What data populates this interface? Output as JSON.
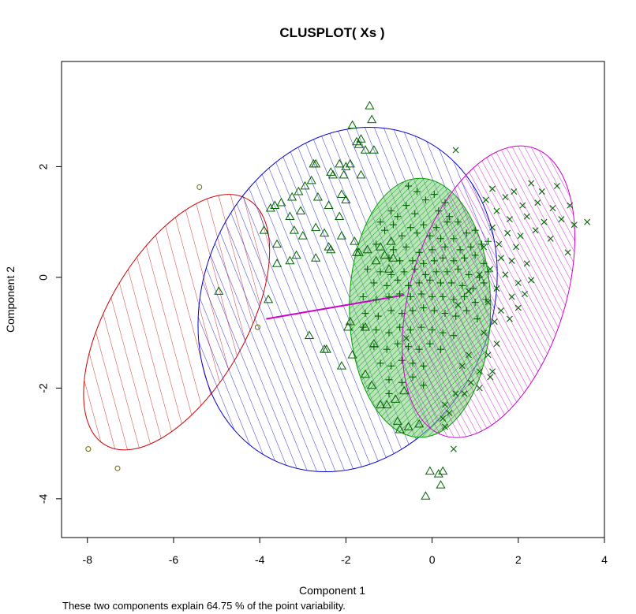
{
  "chart_data": {
    "type": "scatter",
    "title": "CLUSPLOT( Xs )",
    "xlabel": "Component 1",
    "ylabel": "Component 2",
    "subtitle": "These two components explain 64.75 % of the point variability.",
    "xlim": [
      -8.6,
      4.0
    ],
    "ylim": [
      -4.7,
      3.9
    ],
    "x_ticks": [
      -8,
      -6,
      -4,
      -2,
      0,
      2,
      4
    ],
    "y_ticks": [
      -4,
      -2,
      0,
      2
    ],
    "x_tick_labels": [
      "-8",
      "-6",
      "-4",
      "-2",
      "0",
      "2",
      "4"
    ],
    "y_tick_labels": [
      "-4",
      "-2",
      "0",
      "2"
    ],
    "grid": false,
    "colors": {
      "cluster1": "#cc0000",
      "cluster2": "#0000cc",
      "cluster3": "#00a000",
      "cluster4": "#cc00cc",
      "points": "#006400",
      "cluster1_points": "#666600",
      "link": "#cc00cc"
    },
    "ellipses": [
      {
        "cluster": 1,
        "cx": -5.93,
        "cy": -0.81,
        "rx": 3.3,
        "ry": 1.25,
        "angle_deg": 60,
        "color": "#cc0000",
        "fill": "hatch-sparse"
      },
      {
        "cluster": 2,
        "cx": -1.96,
        "cy": -0.4,
        "rx": 4.11,
        "ry": 2.6,
        "angle_deg": 67,
        "color": "#0000cc",
        "fill": "hatch"
      },
      {
        "cluster": 3,
        "cx": -0.28,
        "cy": -0.55,
        "rx": 1.64,
        "ry": 2.34,
        "angle_deg": 0,
        "color": "#00a000",
        "fill": "hatch-dense-green"
      },
      {
        "cluster": 4,
        "cx": 1.31,
        "cy": -0.26,
        "rx": 3.5,
        "ry": 1.4,
        "angle_deg": 73,
        "color": "#cc00cc",
        "fill": "hatch-dense"
      }
    ],
    "links": [
      {
        "from": [
          -3.85,
          -0.75
        ],
        "to": [
          -0.65,
          -0.32
        ],
        "color": "#cc00cc"
      }
    ],
    "series": [
      {
        "cluster": 1,
        "marker": "circle",
        "points": [
          [
            -5.4,
            1.63
          ],
          [
            -7.98,
            -3.1
          ],
          [
            -7.3,
            -3.45
          ],
          [
            -4.05,
            -0.9
          ]
        ]
      },
      {
        "cluster": 2,
        "marker": "triangle",
        "points": [
          [
            -1.45,
            3.1
          ],
          [
            -1.4,
            2.85
          ],
          [
            -1.85,
            2.75
          ],
          [
            -1.75,
            2.45
          ],
          [
            -1.65,
            2.5
          ],
          [
            -1.7,
            2.4
          ],
          [
            -1.55,
            2.3
          ],
          [
            -1.35,
            2.3
          ],
          [
            -2.7,
            2.05
          ],
          [
            -2.75,
            2.05
          ],
          [
            -2.15,
            2.05
          ],
          [
            -2.0,
            2.0
          ],
          [
            -1.9,
            2.05
          ],
          [
            -2.35,
            1.9
          ],
          [
            -2.3,
            1.85
          ],
          [
            -2.05,
            1.85
          ],
          [
            -1.65,
            1.85
          ],
          [
            -2.8,
            1.75
          ],
          [
            -2.95,
            1.65
          ],
          [
            -3.1,
            1.55
          ],
          [
            -3.25,
            1.45
          ],
          [
            -3.5,
            1.35
          ],
          [
            -2.65,
            1.45
          ],
          [
            -2.1,
            1.5
          ],
          [
            -2.0,
            1.4
          ],
          [
            -2.4,
            1.3
          ],
          [
            -3.75,
            1.25
          ],
          [
            -3.65,
            1.3
          ],
          [
            -3.3,
            1.1
          ],
          [
            -3.05,
            1.2
          ],
          [
            -2.15,
            1.1
          ],
          [
            -3.2,
            0.85
          ],
          [
            -2.7,
            0.9
          ],
          [
            -2.5,
            0.8
          ],
          [
            -3.9,
            0.85
          ],
          [
            -2.1,
            0.75
          ],
          [
            -3.0,
            0.75
          ],
          [
            -3.6,
            0.6
          ],
          [
            -3.15,
            0.4
          ],
          [
            -2.4,
            0.55
          ],
          [
            -2.35,
            0.5
          ],
          [
            -1.8,
            0.65
          ],
          [
            -1.7,
            0.45
          ],
          [
            -1.5,
            0.5
          ],
          [
            -1.2,
            0.55
          ],
          [
            -0.95,
            0.65
          ],
          [
            -1.1,
            0.4
          ],
          [
            -0.9,
            0.35
          ],
          [
            -2.7,
            0.35
          ],
          [
            -3.3,
            0.3
          ],
          [
            -3.6,
            0.25
          ],
          [
            -1.3,
            0.3
          ],
          [
            -1.0,
            0.15
          ],
          [
            -1.75,
            0.45
          ],
          [
            -4.95,
            -0.25
          ],
          [
            -3.8,
            -0.4
          ],
          [
            -2.85,
            -1.05
          ],
          [
            -2.5,
            -1.3
          ],
          [
            -2.45,
            -1.3
          ],
          [
            -2.1,
            -1.6
          ],
          [
            -1.95,
            -0.9
          ],
          [
            -1.55,
            -1.75
          ],
          [
            -1.85,
            -1.4
          ],
          [
            -1.4,
            -1.95
          ],
          [
            -1.2,
            -2.3
          ],
          [
            -1.05,
            -2.3
          ],
          [
            -0.85,
            -2.2
          ],
          [
            -0.8,
            -2.6
          ],
          [
            -0.75,
            -2.75
          ],
          [
            -0.65,
            -2.05
          ],
          [
            -0.55,
            -2.7
          ],
          [
            -0.3,
            -2.65
          ],
          [
            -0.05,
            -3.5
          ],
          [
            0.15,
            -3.55
          ],
          [
            0.2,
            -3.75
          ],
          [
            0.25,
            -3.5
          ],
          [
            -0.15,
            -3.95
          ],
          [
            -1.9,
            -0.8
          ],
          [
            -1.55,
            -0.9
          ],
          [
            -1.35,
            -1.2
          ]
        ]
      },
      {
        "cluster": 3,
        "marker": "plus",
        "points": [
          [
            -0.55,
            1.65
          ],
          [
            -0.35,
            1.55
          ],
          [
            -0.15,
            1.4
          ],
          [
            0.05,
            1.5
          ],
          [
            0.3,
            1.35
          ],
          [
            -0.95,
            1.2
          ],
          [
            -0.8,
            1.1
          ],
          [
            -0.6,
            1.3
          ],
          [
            -0.4,
            1.15
          ],
          [
            0.15,
            1.2
          ],
          [
            0.4,
            1.1
          ],
          [
            -1.2,
            1.0
          ],
          [
            -0.9,
            0.95
          ],
          [
            -0.5,
            0.9
          ],
          [
            -0.2,
            0.95
          ],
          [
            0.1,
            0.9
          ],
          [
            0.35,
            1.0
          ],
          [
            0.6,
            1.0
          ],
          [
            -1.1,
            0.85
          ],
          [
            -0.7,
            0.75
          ],
          [
            -0.35,
            0.8
          ],
          [
            -0.05,
            0.75
          ],
          [
            0.2,
            0.7
          ],
          [
            0.5,
            0.7
          ],
          [
            0.8,
            0.8
          ],
          [
            1.0,
            0.85
          ],
          [
            -1.3,
            0.6
          ],
          [
            -0.9,
            0.5
          ],
          [
            -0.6,
            0.55
          ],
          [
            -0.3,
            0.45
          ],
          [
            0.0,
            0.5
          ],
          [
            0.3,
            0.55
          ],
          [
            0.65,
            0.5
          ],
          [
            0.9,
            0.55
          ],
          [
            1.15,
            0.6
          ],
          [
            1.3,
            0.65
          ],
          [
            -1.0,
            0.35
          ],
          [
            -0.75,
            0.3
          ],
          [
            -0.45,
            0.3
          ],
          [
            -0.2,
            0.25
          ],
          [
            0.05,
            0.3
          ],
          [
            0.25,
            0.35
          ],
          [
            0.5,
            0.3
          ],
          [
            0.75,
            0.35
          ],
          [
            1.0,
            0.4
          ],
          [
            1.2,
            0.25
          ],
          [
            -1.5,
            0.15
          ],
          [
            -1.2,
            0.1
          ],
          [
            -0.95,
            0.05
          ],
          [
            -0.65,
            0.1
          ],
          [
            -0.4,
            0.15
          ],
          [
            -0.15,
            0.05
          ],
          [
            0.1,
            0.1
          ],
          [
            0.35,
            0.1
          ],
          [
            0.6,
            0.15
          ],
          [
            0.85,
            0.05
          ],
          [
            1.1,
            0.0
          ],
          [
            1.3,
            0.1
          ],
          [
            -1.35,
            -0.1
          ],
          [
            -1.05,
            -0.15
          ],
          [
            -0.8,
            -0.05
          ],
          [
            -0.55,
            -0.15
          ],
          [
            -0.3,
            -0.1
          ],
          [
            -0.05,
            -0.05
          ],
          [
            0.2,
            -0.1
          ],
          [
            0.45,
            -0.1
          ],
          [
            0.7,
            -0.15
          ],
          [
            0.95,
            -0.2
          ],
          [
            1.2,
            -0.1
          ],
          [
            -1.6,
            -0.35
          ],
          [
            -1.3,
            -0.4
          ],
          [
            -1.0,
            -0.35
          ],
          [
            -0.75,
            -0.3
          ],
          [
            -0.5,
            -0.35
          ],
          [
            -0.25,
            -0.3
          ],
          [
            0.0,
            -0.35
          ],
          [
            0.25,
            -0.35
          ],
          [
            0.5,
            -0.4
          ],
          [
            0.75,
            -0.35
          ],
          [
            1.0,
            -0.45
          ],
          [
            1.25,
            -0.4
          ],
          [
            -1.55,
            -0.65
          ],
          [
            -1.25,
            -0.7
          ],
          [
            -0.95,
            -0.6
          ],
          [
            -0.7,
            -0.65
          ],
          [
            -0.45,
            -0.6
          ],
          [
            -0.2,
            -0.55
          ],
          [
            0.05,
            -0.6
          ],
          [
            0.3,
            -0.65
          ],
          [
            0.55,
            -0.7
          ],
          [
            0.8,
            -0.6
          ],
          [
            1.05,
            -0.75
          ],
          [
            -1.6,
            -0.9
          ],
          [
            -1.3,
            -0.95
          ],
          [
            -1.0,
            -1.0
          ],
          [
            -0.75,
            -0.9
          ],
          [
            -0.5,
            -0.95
          ],
          [
            -0.25,
            -0.9
          ],
          [
            0.0,
            -0.95
          ],
          [
            0.25,
            -1.0
          ],
          [
            0.5,
            -1.05
          ],
          [
            -1.35,
            -1.25
          ],
          [
            -1.05,
            -1.3
          ],
          [
            -0.8,
            -1.2
          ],
          [
            -0.55,
            -1.25
          ],
          [
            -0.3,
            -1.3
          ],
          [
            -0.05,
            -1.2
          ],
          [
            0.2,
            -1.3
          ],
          [
            -1.2,
            -1.55
          ],
          [
            -0.95,
            -1.6
          ],
          [
            -0.7,
            -1.5
          ],
          [
            -0.45,
            -1.55
          ],
          [
            -0.2,
            -1.6
          ],
          [
            -1.0,
            -1.85
          ],
          [
            -0.7,
            -1.9
          ],
          [
            -0.45,
            -1.8
          ],
          [
            -0.2,
            -1.95
          ],
          [
            -1.0,
            -2.1
          ]
        ]
      },
      {
        "cluster": 4,
        "marker": "cross",
        "points": [
          [
            0.55,
            2.3
          ],
          [
            1.4,
            1.6
          ],
          [
            1.9,
            1.55
          ],
          [
            2.3,
            1.7
          ],
          [
            2.55,
            1.55
          ],
          [
            2.9,
            1.65
          ],
          [
            1.7,
            1.45
          ],
          [
            2.1,
            1.3
          ],
          [
            2.45,
            1.35
          ],
          [
            2.8,
            1.25
          ],
          [
            3.2,
            1.3
          ],
          [
            1.25,
            1.4
          ],
          [
            1.5,
            1.2
          ],
          [
            1.8,
            1.05
          ],
          [
            2.2,
            1.1
          ],
          [
            2.6,
            1.0
          ],
          [
            3.0,
            1.05
          ],
          [
            3.3,
            0.95
          ],
          [
            3.6,
            1.0
          ],
          [
            1.4,
            0.9
          ],
          [
            1.75,
            0.8
          ],
          [
            2.05,
            0.75
          ],
          [
            2.4,
            0.85
          ],
          [
            2.75,
            0.7
          ],
          [
            1.55,
            0.6
          ],
          [
            1.95,
            0.55
          ],
          [
            1.2,
            0.55
          ],
          [
            1.6,
            0.35
          ],
          [
            1.85,
            0.3
          ],
          [
            2.2,
            0.25
          ],
          [
            3.15,
            0.45
          ],
          [
            1.35,
            0.15
          ],
          [
            1.7,
            0.05
          ],
          [
            2.0,
            -0.1
          ],
          [
            2.3,
            -0.05
          ],
          [
            1.5,
            -0.2
          ],
          [
            1.85,
            -0.35
          ],
          [
            2.15,
            -0.3
          ],
          [
            1.3,
            -0.45
          ],
          [
            1.6,
            -0.6
          ],
          [
            2.0,
            -0.55
          ],
          [
            1.45,
            -0.8
          ],
          [
            1.8,
            -0.75
          ],
          [
            1.2,
            -1.0
          ],
          [
            1.5,
            -1.2
          ],
          [
            1.3,
            -1.4
          ],
          [
            1.1,
            -1.7
          ],
          [
            1.4,
            -1.7
          ],
          [
            0.9,
            -1.9
          ],
          [
            1.1,
            -2.0
          ],
          [
            1.35,
            -1.8
          ],
          [
            0.75,
            -2.1
          ],
          [
            0.55,
            -2.1
          ],
          [
            0.3,
            -2.3
          ],
          [
            0.4,
            -2.45
          ],
          [
            0.25,
            -2.55
          ],
          [
            0.3,
            -2.7
          ],
          [
            0.5,
            -3.1
          ],
          [
            0.7,
            -1.6
          ],
          [
            0.85,
            -1.4
          ],
          [
            -0.6,
            -1.1
          ],
          [
            0.6,
            -0.5
          ],
          [
            0.85,
            -0.25
          ],
          [
            1.1,
            0.05
          ]
        ]
      }
    ]
  }
}
